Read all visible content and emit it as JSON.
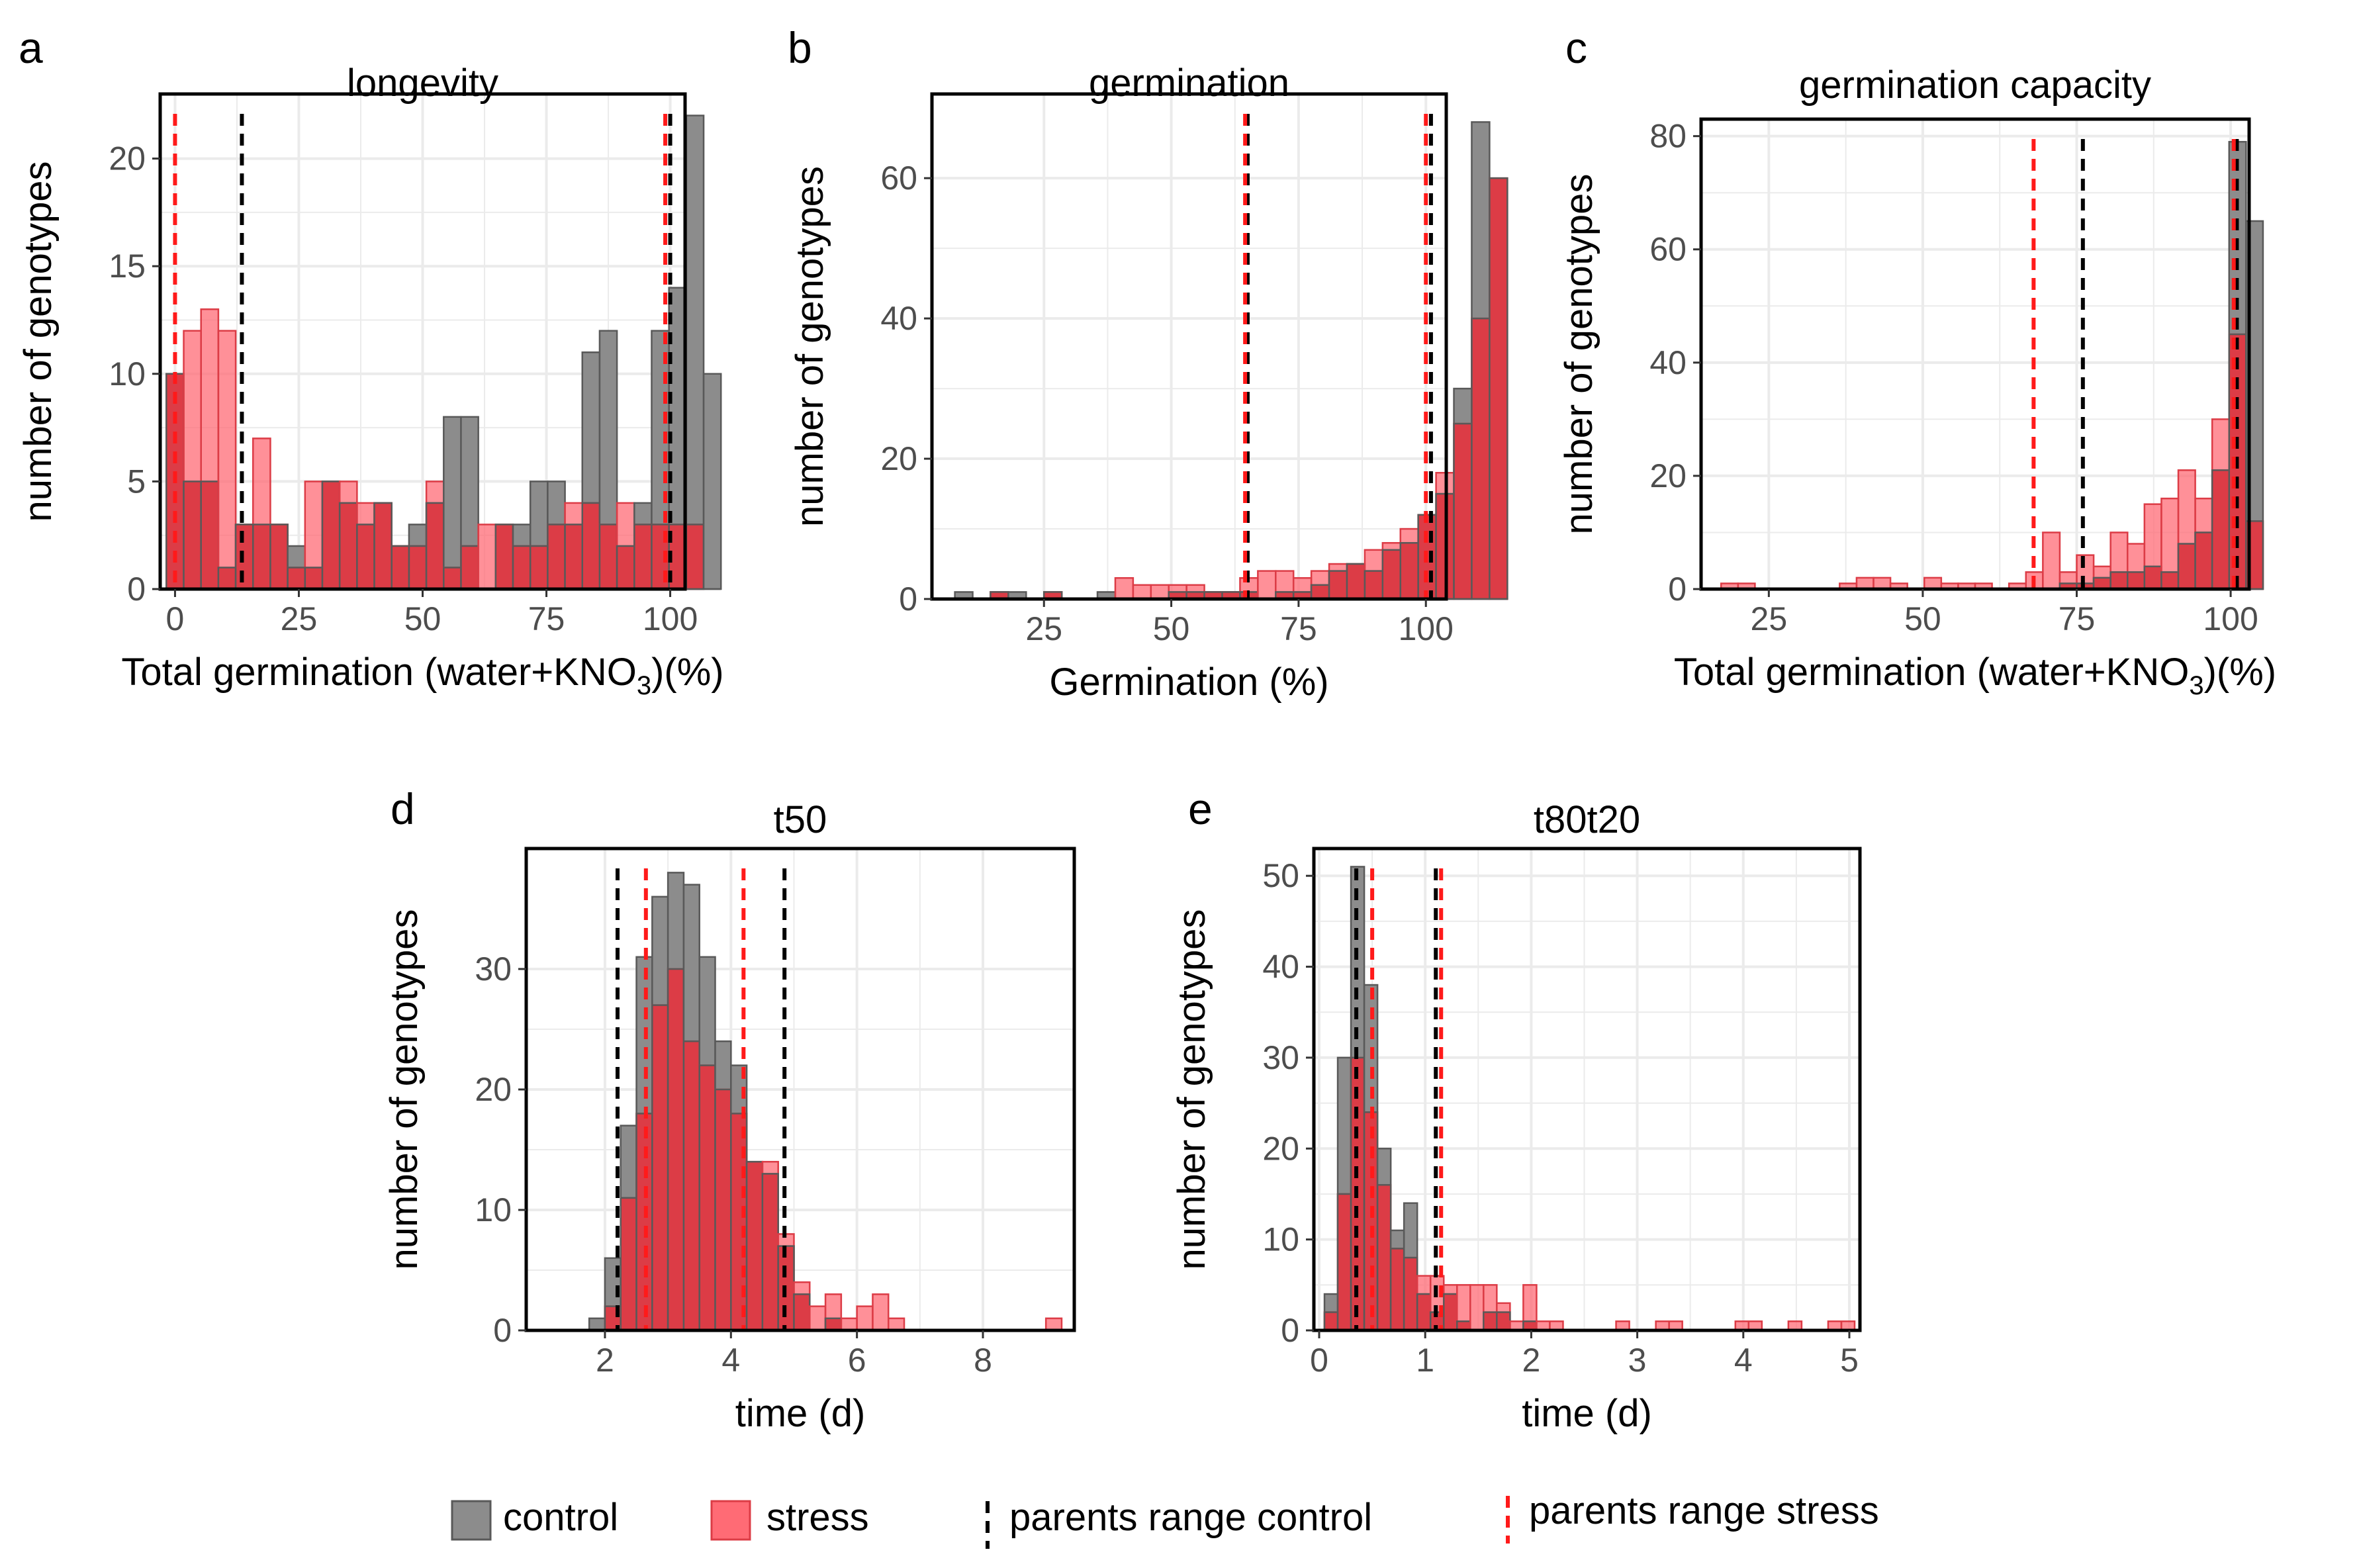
{
  "colors": {
    "control_fill": "#8c8c8c",
    "stress_fill": "#ff6b75",
    "stress_overlap": "#dc3c46",
    "bar_stroke": "#595959",
    "parent_control_line": "#000000",
    "parent_stress_line": "#ff1a1a",
    "grid": "#ebebeb"
  },
  "legend": {
    "control": "control",
    "stress": "stress",
    "parents_range_control": "parents  range control",
    "parents_range_stress": "parents  range stress"
  },
  "chart_data": [
    {
      "panel": "a",
      "type": "bar",
      "title": "longevity",
      "ylabel": "number of genotypes",
      "xlabel": "Total germination (water+KNO3)(%)",
      "xlabel_main": "Total germination (water+KNO",
      "xlabel_sub": "3",
      "xlabel_tail": ")(%)",
      "xlim": [
        -3,
        103
      ],
      "ylim": [
        0,
        23
      ],
      "xticks": [
        0,
        25,
        50,
        75,
        100
      ],
      "yticks": [
        0,
        5,
        10,
        15,
        20
      ],
      "bin_start": -1.75,
      "bin_width": 3.5,
      "control_counts": [
        10,
        5,
        5,
        1,
        3,
        3,
        3,
        2,
        1,
        5,
        4,
        3,
        4,
        2,
        3,
        4,
        8,
        8,
        0,
        3,
        3,
        5,
        5,
        3,
        11,
        12,
        2,
        4,
        12,
        14,
        22,
        10
      ],
      "stress_counts": [
        10,
        12,
        13,
        12,
        3,
        7,
        3,
        1,
        5,
        5,
        5,
        4,
        4,
        2,
        2,
        5,
        1,
        2,
        3,
        3,
        2,
        2,
        3,
        4,
        4,
        3,
        4,
        3,
        3,
        3,
        3,
        0
      ],
      "parents_control": [
        13.5,
        100
      ],
      "parents_stress": [
        0,
        99
      ]
    },
    {
      "panel": "b",
      "type": "bar",
      "title": "germination",
      "ylabel": "number of genotypes",
      "xlabel": "Germination (%)",
      "xlabel_main": "Germination (%)",
      "xlabel_sub": "",
      "xlabel_tail": "",
      "xlim": [
        3,
        104
      ],
      "ylim": [
        0,
        72
      ],
      "xticks": [
        25,
        50,
        75,
        100
      ],
      "yticks": [
        0,
        20,
        40,
        60
      ],
      "bin_start": 7.5,
      "bin_width": 3.5,
      "control_counts": [
        1,
        0,
        1,
        1,
        0,
        1,
        0,
        0,
        1,
        0,
        0,
        0,
        1,
        1,
        1,
        1,
        1,
        0,
        1,
        1,
        2,
        4,
        5,
        4,
        7,
        8,
        12,
        15,
        30,
        68,
        60
      ],
      "stress_counts": [
        0,
        0,
        1,
        0,
        0,
        1,
        0,
        0,
        0,
        3,
        2,
        2,
        2,
        2,
        1,
        1,
        3,
        4,
        4,
        3,
        4,
        5,
        5,
        7,
        8,
        10,
        12,
        18,
        25,
        40,
        60
      ],
      "parents_control": [
        65,
        101
      ],
      "parents_stress": [
        64.5,
        100
      ]
    },
    {
      "panel": "c",
      "type": "bar",
      "title": "germination capacity",
      "ylabel": "number of genotypes",
      "xlabel": "Total germination (water+KNO3)(%)",
      "xlabel_main": "Total germination (water+KNO",
      "xlabel_sub": "3",
      "xlabel_tail": ")(%)",
      "xlim": [
        14,
        103
      ],
      "ylim": [
        0,
        83
      ],
      "xticks": [
        25,
        50,
        75,
        100
      ],
      "yticks": [
        0,
        20,
        40,
        60,
        80
      ],
      "bin_start": 17.25,
      "bin_width": 2.75,
      "control_counts": [
        0,
        0,
        0,
        0,
        0,
        0,
        0,
        0,
        0,
        0,
        0,
        0,
        0,
        0,
        0,
        0,
        0,
        0,
        0,
        0,
        1,
        1,
        2,
        3,
        3,
        4,
        3,
        8,
        10,
        21,
        79,
        65
      ],
      "stress_counts": [
        1,
        1,
        0,
        0,
        0,
        0,
        0,
        1,
        2,
        2,
        1,
        0,
        2,
        1,
        1,
        1,
        0,
        1,
        3,
        10,
        3,
        6,
        4,
        10,
        8,
        15,
        16,
        21,
        16,
        30,
        45,
        12
      ],
      "parents_control": [
        76,
        101
      ],
      "parents_stress": [
        68,
        100.5
      ]
    },
    {
      "panel": "d",
      "type": "bar",
      "title": "t50",
      "ylabel": "number of genotypes",
      "xlabel": "time (d)",
      "xlabel_main": "time (d)",
      "xlabel_sub": "",
      "xlabel_tail": "",
      "xlim": [
        0.75,
        9.45
      ],
      "ylim": [
        0,
        40
      ],
      "xticks": [
        2,
        4,
        6,
        8
      ],
      "yticks": [
        0,
        10,
        20,
        30
      ],
      "bin_start": 1.75,
      "bin_width": 0.25,
      "control_counts": [
        1,
        6,
        17,
        31,
        36,
        38,
        37,
        31,
        24,
        22,
        14,
        13,
        7,
        3,
        0,
        1,
        0,
        0,
        0,
        0,
        0,
        0,
        0,
        0,
        0,
        0,
        0,
        0,
        0,
        0
      ],
      "stress_counts": [
        0,
        2,
        11,
        18,
        27,
        30,
        24,
        22,
        20,
        18,
        14,
        14,
        8,
        4,
        2,
        3,
        1,
        2,
        3,
        1,
        0,
        0,
        0,
        0,
        0,
        0,
        0,
        0,
        0,
        1
      ],
      "parents_control": [
        2.2,
        4.85
      ],
      "parents_stress": [
        2.65,
        4.2
      ]
    },
    {
      "panel": "e",
      "type": "bar",
      "title": "t80t20",
      "ylabel": "number of genotypes",
      "xlabel": "time (d)",
      "xlabel_main": "time (d)",
      "xlabel_sub": "",
      "xlabel_tail": "",
      "xlim": [
        -0.05,
        5.1
      ],
      "ylim": [
        0,
        53
      ],
      "xticks": [
        0,
        1,
        2,
        3,
        4,
        5
      ],
      "yticks": [
        0,
        10,
        20,
        30,
        40,
        50
      ],
      "bin_start": 0.05,
      "bin_width": 0.125,
      "control_counts": [
        4,
        30,
        51,
        38,
        20,
        11,
        14,
        4,
        2,
        4,
        1,
        0,
        2,
        2,
        0,
        1,
        0,
        0,
        0,
        0,
        0,
        0,
        0,
        0,
        0,
        0,
        0,
        0,
        0,
        0,
        0,
        0,
        0,
        0,
        0,
        0,
        0,
        0,
        0,
        0
      ],
      "stress_counts": [
        2,
        15,
        30,
        24,
        16,
        9,
        8,
        6,
        6,
        5,
        5,
        5,
        5,
        3,
        1,
        5,
        1,
        1,
        0,
        0,
        0,
        0,
        1,
        0,
        0,
        1,
        1,
        0,
        0,
        0,
        0,
        1,
        1,
        0,
        0,
        1,
        0,
        0,
        1,
        1
      ],
      "parents_control": [
        0.35,
        1.1
      ],
      "parents_stress": [
        0.5,
        1.15
      ]
    }
  ]
}
